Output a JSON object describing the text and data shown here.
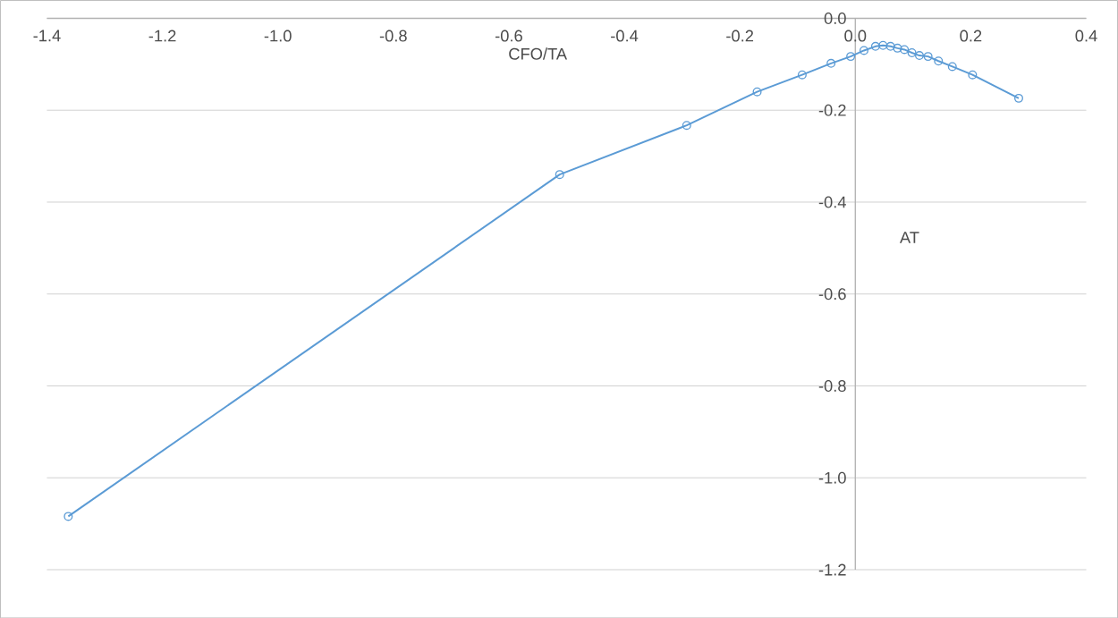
{
  "chart_data": {
    "type": "line",
    "xlabel": "CFO/TA",
    "ylabel": "AT",
    "series": [
      {
        "color": "#5b9bd5",
        "x": [
          -1.363,
          -0.512,
          -0.292,
          -0.17,
          -0.092,
          -0.042,
          -0.008,
          0.015,
          0.035,
          0.048,
          0.061,
          0.073,
          0.085,
          0.098,
          0.111,
          0.126,
          0.144,
          0.168,
          0.203,
          0.283
        ],
        "values": [
          -1.084,
          -0.34,
          -0.233,
          -0.16,
          -0.123,
          -0.098,
          -0.083,
          -0.07,
          -0.061,
          -0.059,
          -0.061,
          -0.065,
          -0.068,
          -0.075,
          -0.081,
          -0.083,
          -0.093,
          -0.105,
          -0.123,
          -0.174
        ]
      }
    ],
    "xlim": [
      -1.4,
      0.4
    ],
    "ylim": [
      -1.2,
      0.0
    ],
    "xticks": [
      {
        "value": -1.4,
        "label": "-1.4"
      },
      {
        "value": -1.2,
        "label": "-1.2"
      },
      {
        "value": -1.0,
        "label": "-1.0"
      },
      {
        "value": -0.8,
        "label": "-0.8"
      },
      {
        "value": -0.6,
        "label": "-0.6"
      },
      {
        "value": -0.4,
        "label": "-0.4"
      },
      {
        "value": -0.2,
        "label": "-0.2"
      },
      {
        "value": 0.0,
        "label": "0.0"
      },
      {
        "value": 0.2,
        "label": "0.2"
      },
      {
        "value": 0.4,
        "label": "0.4"
      }
    ],
    "yticks": [
      {
        "value": -1.2,
        "label": "-1.2"
      },
      {
        "value": -1.0,
        "label": "-1.0"
      },
      {
        "value": -0.8,
        "label": "-0.8"
      },
      {
        "value": -0.6,
        "label": "-0.6"
      },
      {
        "value": -0.4,
        "label": "-0.4"
      },
      {
        "value": -0.2,
        "label": "-0.2"
      },
      {
        "value": 0.0,
        "label": "0.0"
      }
    ],
    "grid": "y",
    "legend": false,
    "marker": "circle",
    "line_style": "solid"
  }
}
